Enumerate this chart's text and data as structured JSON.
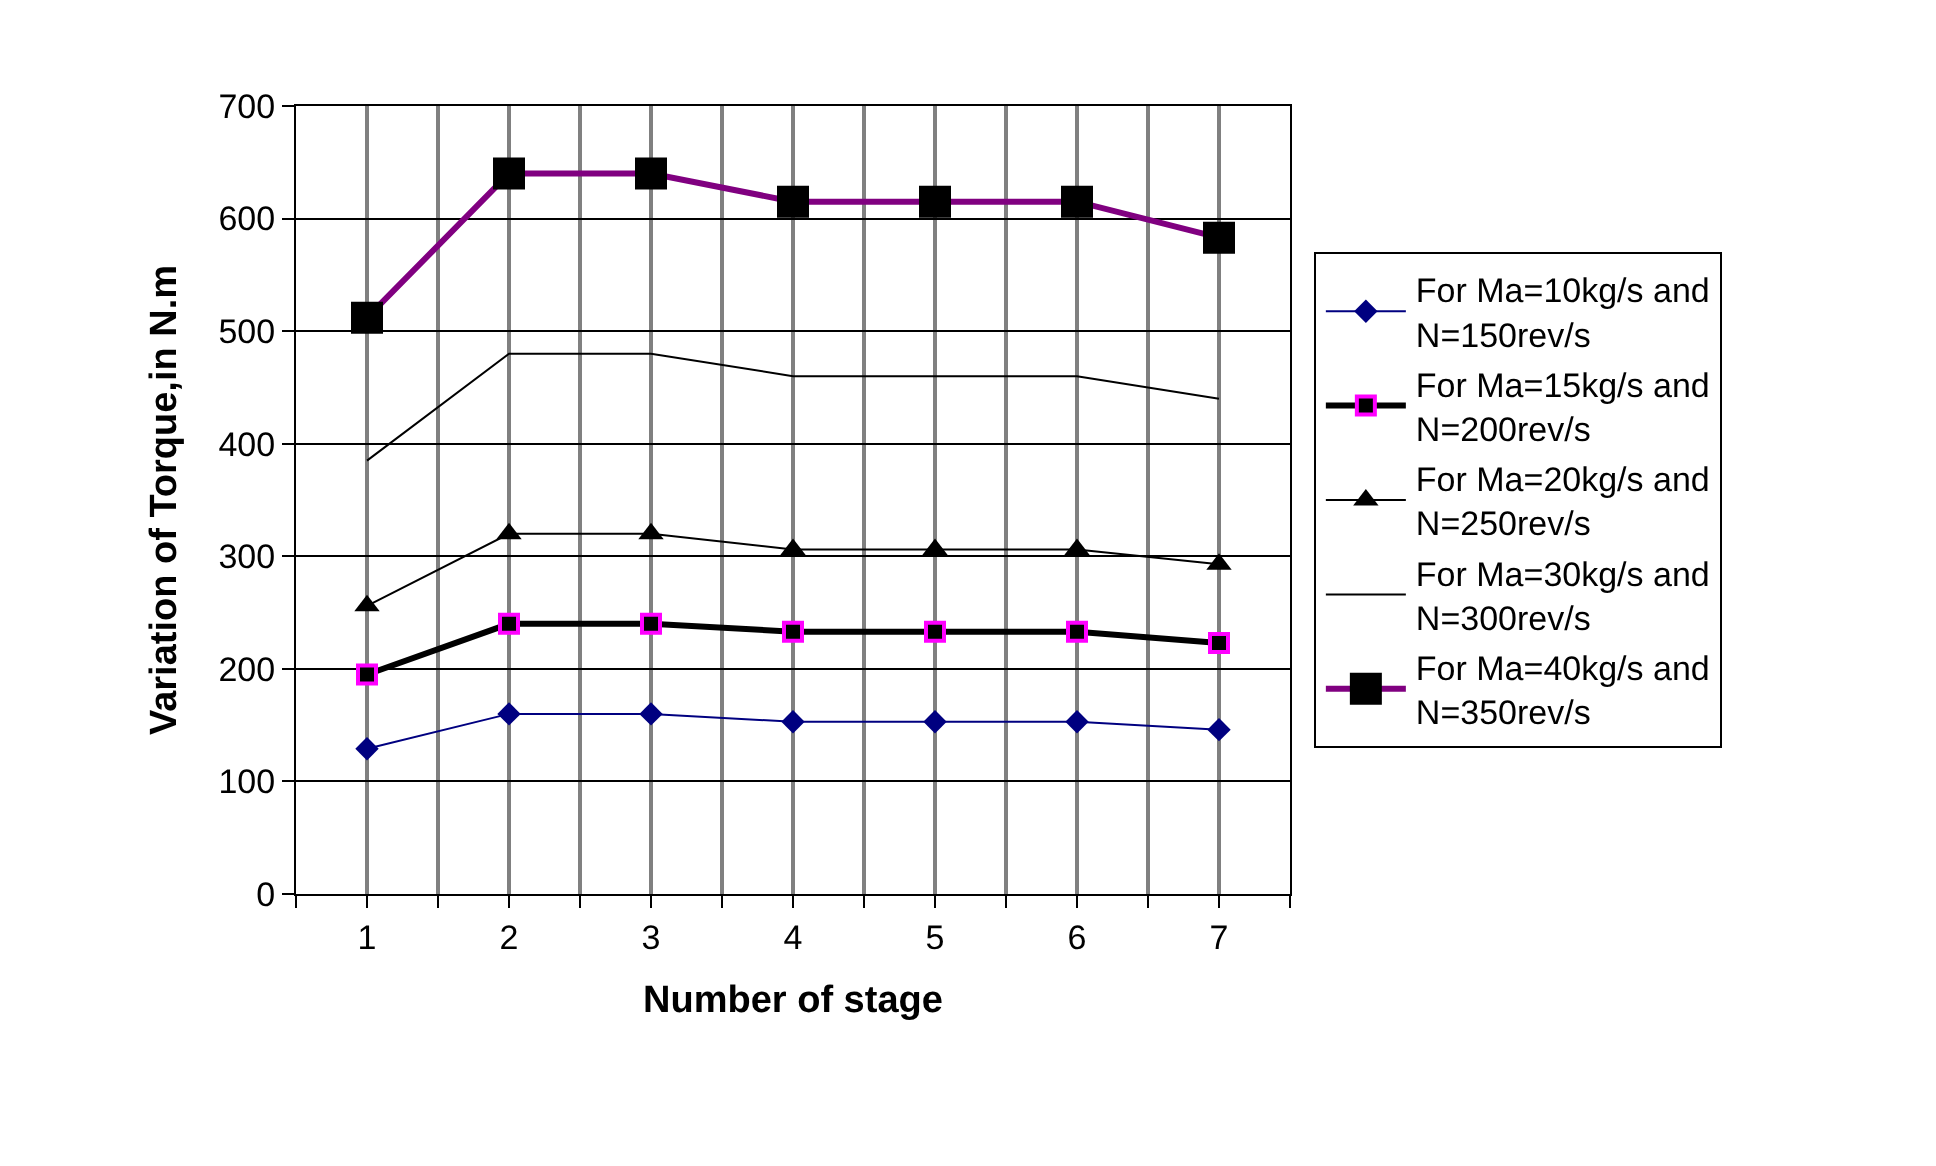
{
  "chart_data": {
    "type": "line",
    "xlabel": "Number of stage",
    "ylabel": "Variation of Torque,in N.m",
    "x": [
      1,
      2,
      3,
      4,
      5,
      6,
      7
    ],
    "xlim": [
      0.5,
      7.5
    ],
    "xticks": [
      1,
      2,
      3,
      4,
      5,
      6,
      7
    ],
    "ylim": [
      0,
      700
    ],
    "yticks": [
      0,
      100,
      200,
      300,
      400,
      500,
      600,
      700
    ],
    "grid": true,
    "legend": "right",
    "series": [
      {
        "name": "For Ma=10kg/s and N=150rev/s",
        "color": "#000080",
        "marker": "diamond",
        "values": [
          129,
          160,
          160,
          153,
          153,
          153,
          146
        ]
      },
      {
        "name": "For Ma=15kg/s and N=200rev/s",
        "color": "#000000",
        "marker": "square",
        "values": [
          195,
          240,
          240,
          233,
          233,
          233,
          223
        ]
      },
      {
        "name": "For Ma=20kg/s and N=250rev/s",
        "color": "#000000",
        "marker": "triangle",
        "values": [
          256,
          320,
          320,
          306,
          306,
          306,
          293
        ]
      },
      {
        "name": "For Ma=30kg/s and N=300rev/s",
        "color": "#000000",
        "marker": "none",
        "values": [
          385,
          480,
          480,
          460,
          460,
          460,
          440
        ]
      },
      {
        "name": "For Ma=40kg/s and N=350rev/s",
        "color": "#800080",
        "marker": "square",
        "values": [
          512,
          640,
          640,
          615,
          615,
          615,
          583
        ]
      }
    ]
  }
}
